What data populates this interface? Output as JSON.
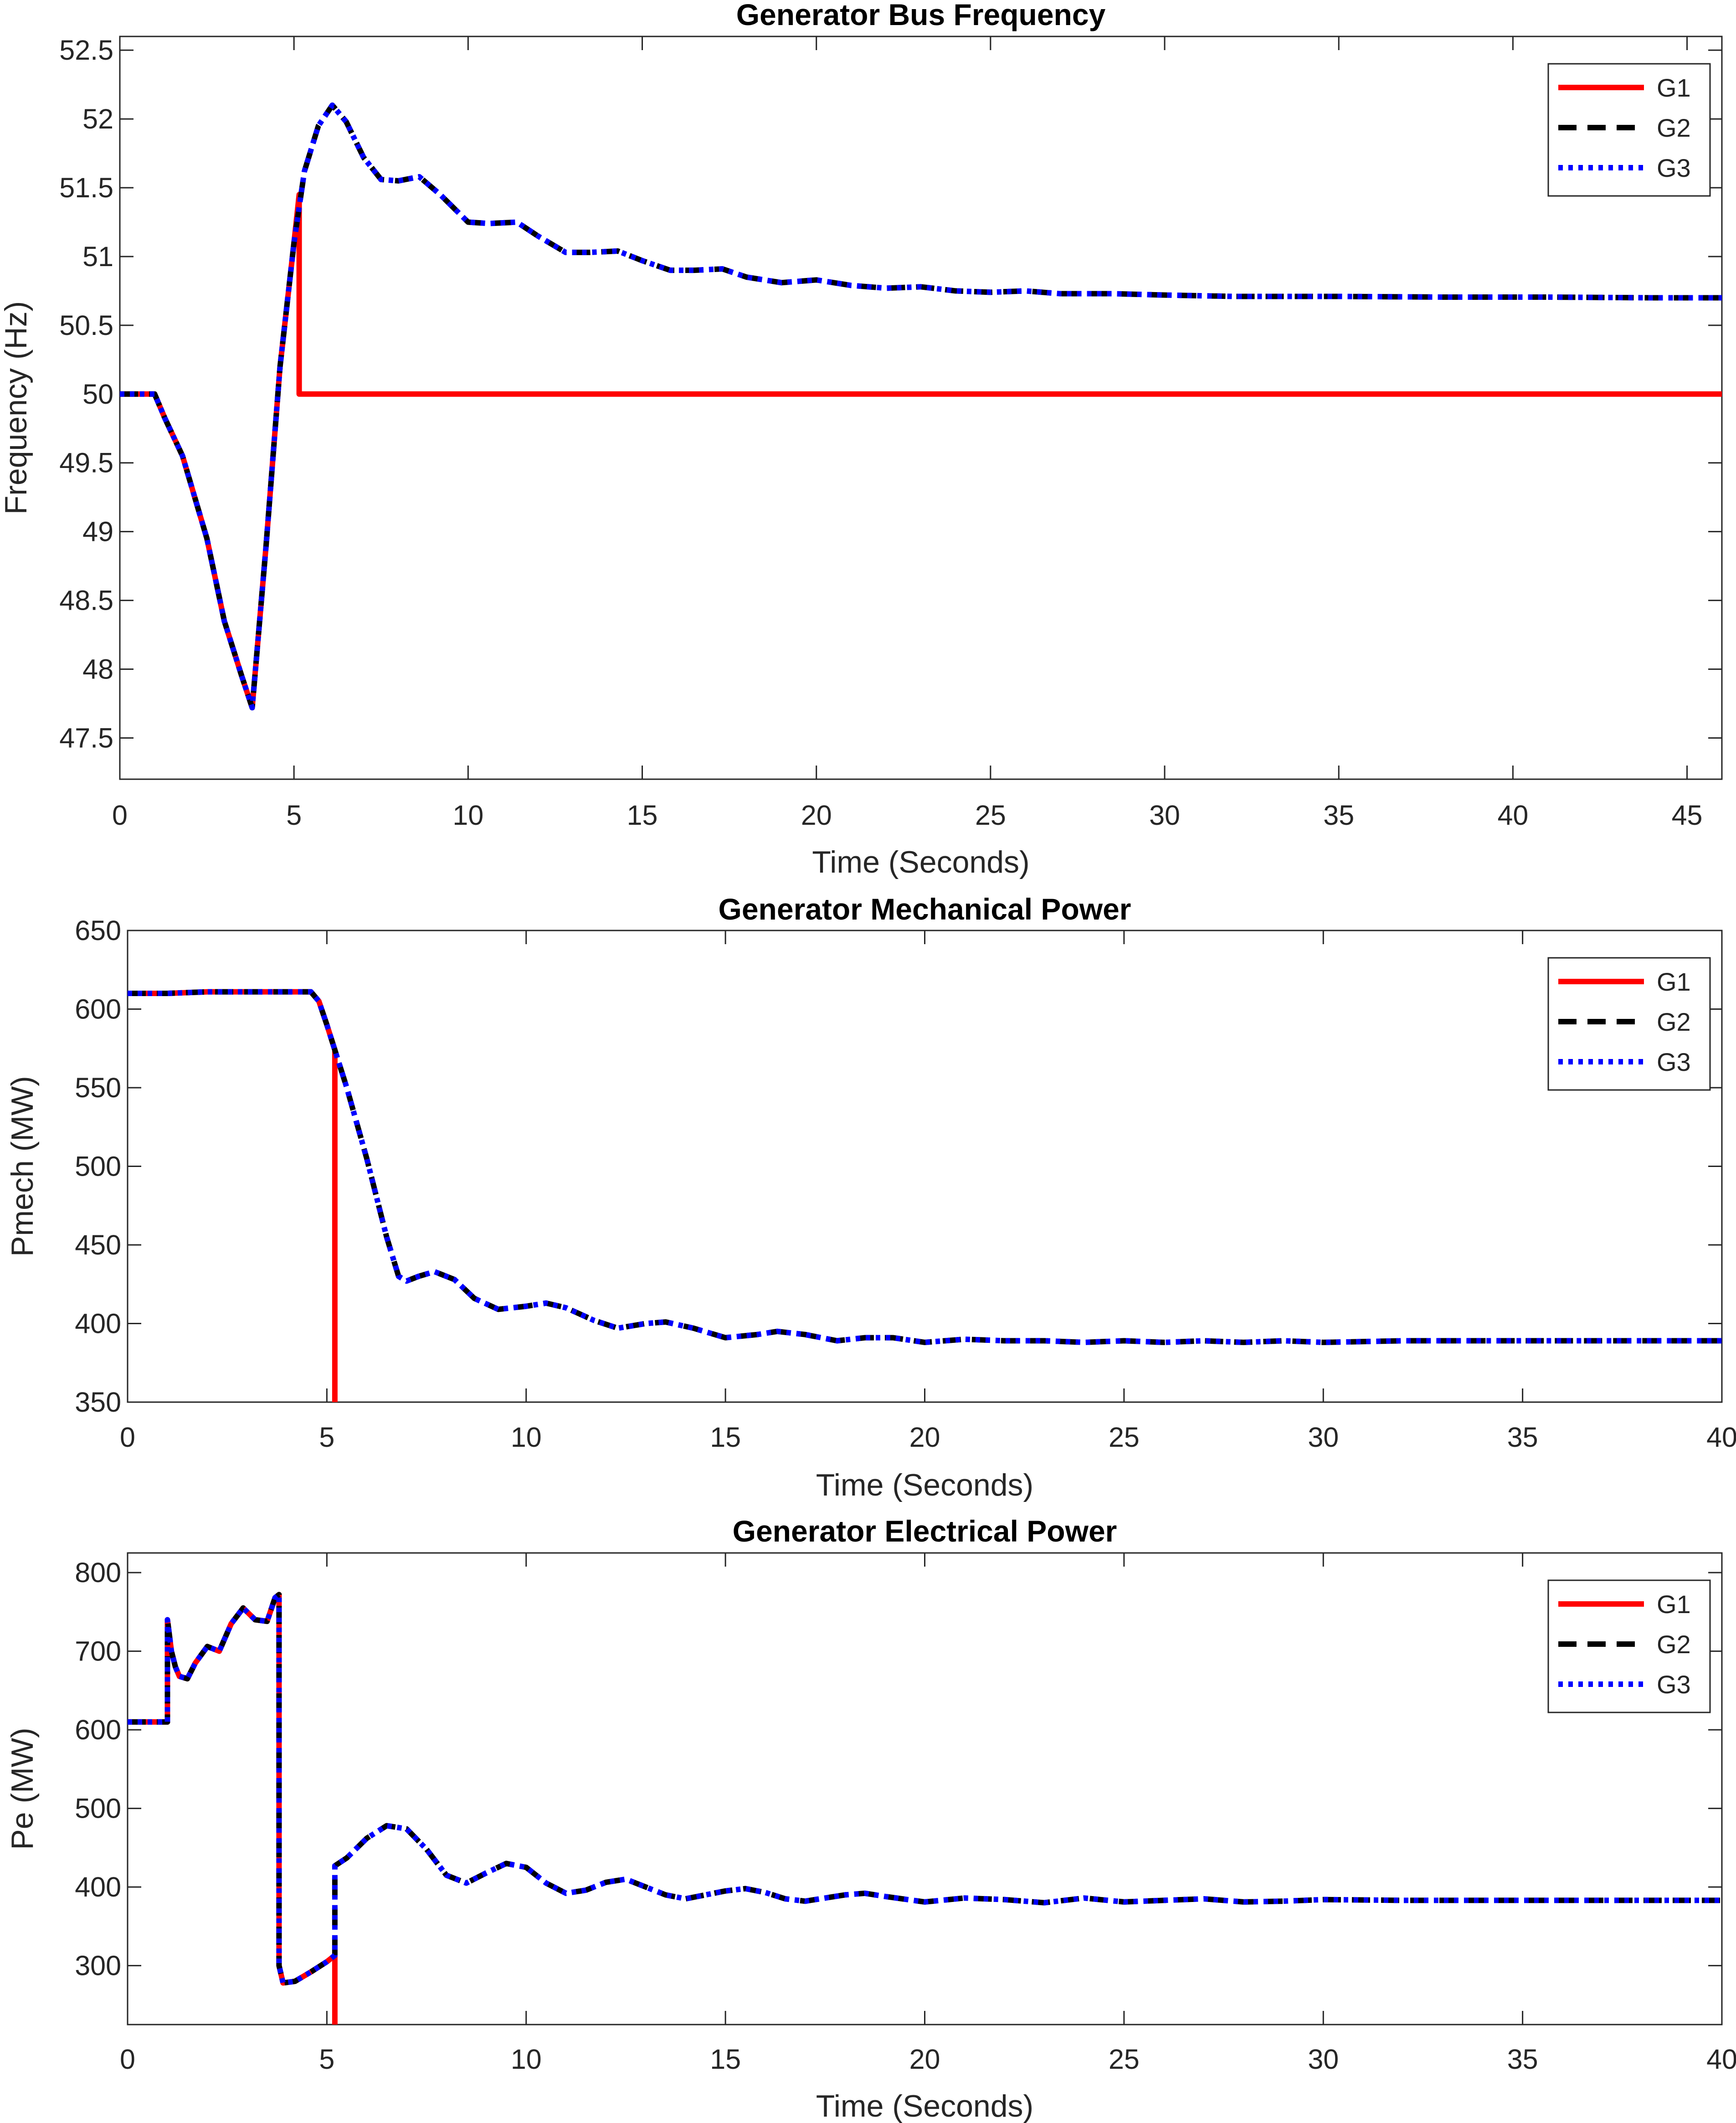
{
  "chart_data": [
    {
      "type": "line",
      "title": "Generator Bus Frequency",
      "xlabel": "Time (Seconds)",
      "ylabel": "Frequency (Hz)",
      "xlim": [
        0,
        46
      ],
      "ylim": [
        47.2,
        52.6
      ],
      "xticks": [
        0,
        5,
        10,
        15,
        20,
        25,
        30,
        35,
        40,
        45
      ],
      "yticks": [
        47.5,
        48,
        48.5,
        49,
        49.5,
        50,
        50.5,
        51,
        51.5,
        52,
        52.5
      ],
      "legend_position": "top-right",
      "grid": false,
      "series": [
        {
          "name": "G1",
          "color": "#ff0000",
          "style": "solid",
          "width": 12,
          "x": [
            0,
            1,
            1.3,
            1.8,
            2.5,
            3.0,
            3.5,
            3.8,
            4.2,
            4.6,
            5.0,
            5.15,
            5.15,
            5.3,
            46
          ],
          "y": [
            50.0,
            50.0,
            49.82,
            49.55,
            48.95,
            48.35,
            47.95,
            47.72,
            48.9,
            50.2,
            51.1,
            51.45,
            50.0,
            50.0,
            50.0
          ]
        },
        {
          "name": "G2",
          "color": "#000000",
          "style": "dashed",
          "width": 12,
          "x": [
            0,
            1,
            1.3,
            1.8,
            2.5,
            3.0,
            3.5,
            3.8,
            4.2,
            4.6,
            5.0,
            5.3,
            5.7,
            6.1,
            6.5,
            7.0,
            7.5,
            8.0,
            8.6,
            9.2,
            10.0,
            10.6,
            11.4,
            12.0,
            12.8,
            13.5,
            14.3,
            15.0,
            15.8,
            16.5,
            17.3,
            18.0,
            19.0,
            20.0,
            21.0,
            22.0,
            23.0,
            24.0,
            25.0,
            26.0,
            27.0,
            28.5,
            30.0,
            32.0,
            35.0,
            38.0,
            41.0,
            44.0,
            46.0
          ],
          "y": [
            50.0,
            50.0,
            49.82,
            49.55,
            48.95,
            48.35,
            47.95,
            47.72,
            48.9,
            50.2,
            51.1,
            51.62,
            51.95,
            52.1,
            51.98,
            51.72,
            51.56,
            51.55,
            51.58,
            51.45,
            51.25,
            51.24,
            51.25,
            51.15,
            51.03,
            51.03,
            51.04,
            50.97,
            50.9,
            50.9,
            50.91,
            50.85,
            50.81,
            50.83,
            50.79,
            50.77,
            50.78,
            50.75,
            50.74,
            50.75,
            50.73,
            50.73,
            50.72,
            50.71,
            50.71,
            50.705,
            50.705,
            50.7,
            50.7
          ]
        },
        {
          "name": "G3",
          "color": "#0000ff",
          "style": "dotted",
          "width": 12,
          "x": [
            0,
            1,
            1.3,
            1.8,
            2.5,
            3.0,
            3.5,
            3.8,
            4.2,
            4.6,
            5.0,
            5.3,
            5.7,
            6.1,
            6.5,
            7.0,
            7.5,
            8.0,
            8.6,
            9.2,
            10.0,
            10.6,
            11.4,
            12.0,
            12.8,
            13.5,
            14.3,
            15.0,
            15.8,
            16.5,
            17.3,
            18.0,
            19.0,
            20.0,
            21.0,
            22.0,
            23.0,
            24.0,
            25.0,
            26.0,
            27.0,
            28.5,
            30.0,
            32.0,
            35.0,
            38.0,
            41.0,
            44.0,
            46.0
          ],
          "y": [
            50.0,
            50.0,
            49.82,
            49.55,
            48.95,
            48.35,
            47.95,
            47.72,
            48.9,
            50.2,
            51.1,
            51.62,
            51.95,
            52.1,
            51.98,
            51.72,
            51.56,
            51.55,
            51.58,
            51.45,
            51.25,
            51.24,
            51.25,
            51.15,
            51.03,
            51.03,
            51.04,
            50.97,
            50.9,
            50.9,
            50.91,
            50.85,
            50.81,
            50.83,
            50.79,
            50.77,
            50.78,
            50.75,
            50.74,
            50.75,
            50.73,
            50.73,
            50.72,
            50.71,
            50.71,
            50.705,
            50.705,
            50.7,
            50.7
          ]
        }
      ]
    },
    {
      "type": "line",
      "title": "Generator Mechanical Power",
      "xlabel": "Time (Seconds)",
      "ylabel": "Pmech (MW)",
      "xlim": [
        0,
        40
      ],
      "ylim": [
        350,
        650
      ],
      "xticks": [
        0,
        5,
        10,
        15,
        20,
        25,
        30,
        35,
        40
      ],
      "yticks": [
        350,
        400,
        450,
        500,
        550,
        600,
        650
      ],
      "legend_position": "top-right",
      "grid": false,
      "series": [
        {
          "name": "G1",
          "color": "#ff0000",
          "style": "solid",
          "width": 12,
          "x": [
            0,
            1,
            2,
            3,
            4,
            4.6,
            4.8,
            5.0,
            5.2,
            5.2,
            5.2
          ],
          "y": [
            610,
            610,
            611,
            611,
            611,
            611,
            605,
            590,
            574,
            574,
            350
          ]
        },
        {
          "name": "G2",
          "color": "#000000",
          "style": "dashed",
          "width": 12,
          "x": [
            0,
            1,
            2,
            3,
            4,
            4.6,
            4.8,
            5.0,
            5.2,
            5.5,
            6.0,
            6.5,
            6.8,
            7.0,
            7.3,
            7.7,
            8.2,
            8.7,
            9.3,
            10.0,
            10.5,
            11.0,
            11.7,
            12.3,
            13.0,
            13.5,
            14.2,
            15.0,
            15.8,
            16.3,
            17.0,
            17.8,
            18.5,
            19.2,
            20.0,
            21.0,
            22.0,
            23.0,
            24.0,
            25.0,
            26.0,
            27.0,
            28.0,
            29.0,
            30.0,
            32.0,
            34.0,
            36.0,
            38.0,
            40.0
          ],
          "y": [
            610,
            610,
            611,
            611,
            611,
            611,
            605,
            590,
            574,
            550,
            505,
            455,
            430,
            427,
            430,
            433,
            428,
            416,
            409,
            411,
            413,
            410,
            402,
            397,
            400,
            401,
            397,
            391,
            393,
            395,
            393,
            389,
            391,
            391,
            388,
            390,
            389,
            389,
            388,
            389,
            388,
            389,
            388,
            389,
            388,
            389,
            389,
            389,
            389,
            389
          ]
        },
        {
          "name": "G3",
          "color": "#0000ff",
          "style": "dotted",
          "width": 12,
          "x": [
            0,
            1,
            2,
            3,
            4,
            4.6,
            4.8,
            5.0,
            5.2,
            5.5,
            6.0,
            6.5,
            6.8,
            7.0,
            7.3,
            7.7,
            8.2,
            8.7,
            9.3,
            10.0,
            10.5,
            11.0,
            11.7,
            12.3,
            13.0,
            13.5,
            14.2,
            15.0,
            15.8,
            16.3,
            17.0,
            17.8,
            18.5,
            19.2,
            20.0,
            21.0,
            22.0,
            23.0,
            24.0,
            25.0,
            26.0,
            27.0,
            28.0,
            29.0,
            30.0,
            32.0,
            34.0,
            36.0,
            38.0,
            40.0
          ],
          "y": [
            610,
            610,
            611,
            611,
            611,
            611,
            605,
            590,
            574,
            550,
            505,
            455,
            430,
            427,
            430,
            433,
            428,
            416,
            409,
            411,
            413,
            410,
            402,
            397,
            400,
            401,
            397,
            391,
            393,
            395,
            393,
            389,
            391,
            391,
            388,
            390,
            389,
            389,
            388,
            389,
            388,
            389,
            388,
            389,
            388,
            389,
            389,
            389,
            389,
            389
          ]
        }
      ]
    },
    {
      "type": "line",
      "title": "Generator Electrical Power",
      "xlabel": "Time (Seconds)",
      "ylabel": "Pe (MW)",
      "xlim": [
        0,
        40
      ],
      "ylim": [
        225,
        825
      ],
      "xticks": [
        0,
        5,
        10,
        15,
        20,
        25,
        30,
        35,
        40
      ],
      "yticks": [
        300,
        400,
        500,
        600,
        700,
        800
      ],
      "legend_position": "top-right",
      "grid": false,
      "series": [
        {
          "name": "G1",
          "color": "#ff0000",
          "style": "solid",
          "width": 12,
          "x": [
            0,
            1.0,
            1.0,
            1.1,
            1.2,
            1.3,
            1.5,
            1.7,
            2.0,
            2.3,
            2.6,
            2.9,
            3.2,
            3.5,
            3.7,
            3.8,
            3.8,
            3.9,
            4.2,
            4.6,
            5.0,
            5.2,
            5.2
          ],
          "y": [
            610,
            610,
            740,
            700,
            680,
            668,
            665,
            685,
            706,
            700,
            735,
            755,
            740,
            738,
            768,
            772,
            300,
            278,
            280,
            292,
            305,
            313,
            225
          ]
        },
        {
          "name": "G2",
          "color": "#000000",
          "style": "dashed",
          "width": 12,
          "x": [
            0,
            1.0,
            1.0,
            1.1,
            1.2,
            1.3,
            1.5,
            1.7,
            2.0,
            2.3,
            2.6,
            2.9,
            3.2,
            3.5,
            3.7,
            3.8,
            3.8,
            3.9,
            4.2,
            4.6,
            5.0,
            5.2,
            5.2,
            5.5,
            6.0,
            6.5,
            7.0,
            7.5,
            8.0,
            8.5,
            9.0,
            9.5,
            10.0,
            10.5,
            11.0,
            11.5,
            12.0,
            12.5,
            13.0,
            13.5,
            14.0,
            15.0,
            15.5,
            16.0,
            16.5,
            17.0,
            18.0,
            18.5,
            19.0,
            20.0,
            21.0,
            22.0,
            23.0,
            24.0,
            25.0,
            26.0,
            27.0,
            28.0,
            29.0,
            30.0,
            32.0,
            34.0,
            36.0,
            38.0,
            40.0
          ],
          "y": [
            610,
            610,
            740,
            700,
            680,
            668,
            665,
            685,
            706,
            700,
            735,
            755,
            740,
            738,
            768,
            772,
            300,
            278,
            280,
            292,
            305,
            313,
            427,
            437,
            462,
            478,
            474,
            448,
            415,
            405,
            418,
            430,
            425,
            405,
            392,
            396,
            406,
            410,
            400,
            390,
            385,
            395,
            398,
            393,
            385,
            382,
            390,
            392,
            388,
            381,
            386,
            384,
            380,
            386,
            381,
            383,
            385,
            381,
            382,
            384,
            383,
            383,
            383,
            383,
            383
          ]
        },
        {
          "name": "G3",
          "color": "#0000ff",
          "style": "dotted",
          "width": 12,
          "x": [
            0,
            1.0,
            1.0,
            1.1,
            1.2,
            1.3,
            1.5,
            1.7,
            2.0,
            2.3,
            2.6,
            2.9,
            3.2,
            3.5,
            3.7,
            3.8,
            3.8,
            3.9,
            4.2,
            4.6,
            5.0,
            5.2,
            5.2,
            5.5,
            6.0,
            6.5,
            7.0,
            7.5,
            8.0,
            8.5,
            9.0,
            9.5,
            10.0,
            10.5,
            11.0,
            11.5,
            12.0,
            12.5,
            13.0,
            13.5,
            14.0,
            15.0,
            15.5,
            16.0,
            16.5,
            17.0,
            18.0,
            18.5,
            19.0,
            20.0,
            21.0,
            22.0,
            23.0,
            24.0,
            25.0,
            26.0,
            27.0,
            28.0,
            29.0,
            30.0,
            32.0,
            34.0,
            36.0,
            38.0,
            40.0
          ],
          "y": [
            610,
            610,
            740,
            700,
            680,
            668,
            665,
            685,
            706,
            700,
            735,
            755,
            740,
            738,
            768,
            772,
            300,
            278,
            280,
            292,
            305,
            313,
            427,
            437,
            462,
            478,
            474,
            448,
            415,
            405,
            418,
            430,
            425,
            405,
            392,
            396,
            406,
            410,
            400,
            390,
            385,
            395,
            398,
            393,
            385,
            382,
            390,
            392,
            388,
            381,
            386,
            384,
            380,
            386,
            381,
            383,
            385,
            381,
            382,
            384,
            383,
            383,
            383,
            383,
            383
          ]
        }
      ]
    }
  ]
}
